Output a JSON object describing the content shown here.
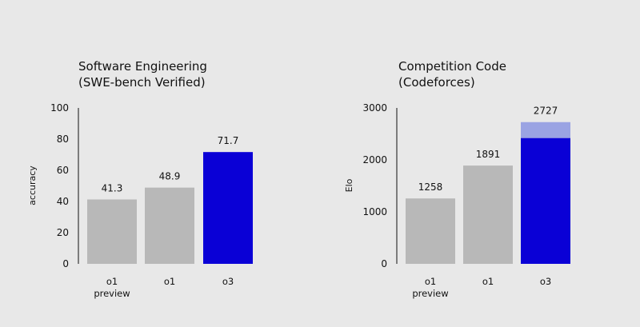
{
  "colors": {
    "background": "#e8e8e8",
    "gray_bar": "#b8b8b8",
    "blue_bar": "#0a00d6",
    "blue_light": "#9aa3e3",
    "text": "#111111"
  },
  "chart_data": [
    {
      "type": "bar",
      "title": "Software Engineering",
      "subtitle": "(SWE-bench Verified)",
      "xlabel": "",
      "ylabel": "accuracy",
      "ylim": [
        0,
        100
      ],
      "yticks": [
        "0",
        "20",
        "40",
        "60",
        "80",
        "100"
      ],
      "categories": [
        [
          "o1",
          "preview"
        ],
        [
          "o1"
        ],
        [
          "o3"
        ]
      ],
      "values": [
        41.3,
        48.9,
        71.7
      ],
      "labels": [
        "41.3",
        "48.9",
        "71.7"
      ],
      "highlight": [
        false,
        false,
        true
      ],
      "grid": false
    },
    {
      "type": "bar",
      "title": "Competition Code",
      "subtitle": "(Codeforces)",
      "xlabel": "",
      "ylabel": "Elo",
      "ylim": [
        0,
        3000
      ],
      "yticks": [
        "0",
        "1000",
        "2000",
        "3000"
      ],
      "categories": [
        [
          "o1",
          "preview"
        ],
        [
          "o1"
        ],
        [
          "o3"
        ]
      ],
      "values": [
        1258,
        1891,
        2727
      ],
      "labels": [
        "1258",
        "1891",
        "2727"
      ],
      "highlight": [
        false,
        false,
        true
      ],
      "stacked_base": [
        null,
        null,
        2420
      ],
      "grid": false
    }
  ]
}
